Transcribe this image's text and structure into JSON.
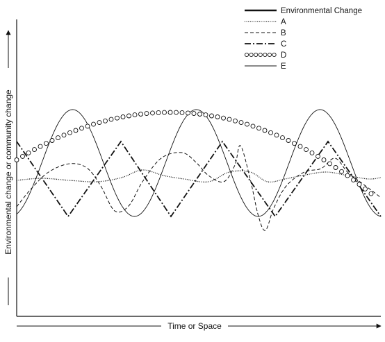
{
  "legend": [
    {
      "key": "env",
      "label": "Environmental Change",
      "style": "thick-solid"
    },
    {
      "key": "a",
      "label": "A",
      "style": "dotted"
    },
    {
      "key": "b",
      "label": "B",
      "style": "dashed"
    },
    {
      "key": "c",
      "label": "C",
      "style": "dash-dot"
    },
    {
      "key": "d",
      "label": "D",
      "style": "open-circles"
    },
    {
      "key": "e",
      "label": "E",
      "style": "thin-solid"
    }
  ],
  "axes": {
    "x_label": "Time or Space",
    "y_label": "Environmental change or community change"
  },
  "colors": {
    "line": "#111111",
    "background": "#ffffff"
  }
}
